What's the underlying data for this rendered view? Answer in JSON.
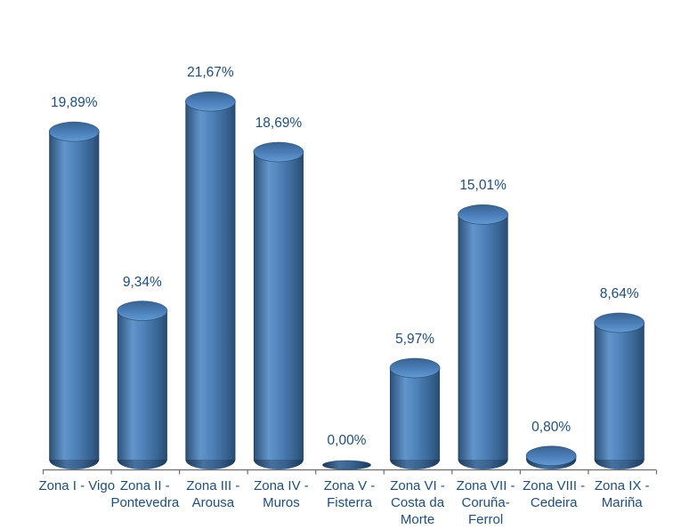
{
  "chart_data": {
    "type": "bar",
    "style": "3d-cylinder",
    "title": "",
    "xlabel": "",
    "ylabel": "",
    "ylim": [
      0,
      24
    ],
    "grid": false,
    "legend": false,
    "value_format": "percent-comma-decimal",
    "categories": [
      "Zona I - Vigo",
      "Zona II - Pontevedra",
      "Zona III - Arousa",
      "Zona IV - Muros",
      "Zona V - Fisterra",
      "Zona VI - Costa da Morte",
      "Zona VII - Coruña-Ferrol",
      "Zona VIII - Cedeira",
      "Zona IX - Mariña"
    ],
    "category_label_lines": [
      [
        "Zona I - Vigo"
      ],
      [
        "Zona II -",
        "Pontevedra"
      ],
      [
        "Zona III -",
        "Arousa"
      ],
      [
        "Zona IV -",
        "Muros"
      ],
      [
        "Zona V -",
        "Fisterra"
      ],
      [
        "Zona VI -",
        "Costa da",
        "Morte"
      ],
      [
        "Zona VII -",
        "Coruña-",
        "Ferrol"
      ],
      [
        "Zona VIII -",
        "Cedeira"
      ],
      [
        "Zona IX -",
        "Mariña"
      ]
    ],
    "values": [
      19.89,
      9.34,
      21.67,
      18.69,
      0,
      5.97,
      15.01,
      0.8,
      8.64
    ],
    "data_labels": [
      "19,89%",
      "9,34%",
      "21,67%",
      "18,69%",
      "0,00%",
      "5,97%",
      "15,01%",
      "0,80%",
      "8,64%"
    ],
    "colors": {
      "bar_body_gradient": [
        "#27466A",
        "#31577F",
        "#6295CB",
        "#4D80B6",
        "#35608D",
        "#294B70"
      ],
      "bar_cap_gradient": [
        "#396390",
        "#4A7DB8",
        "#639BD4"
      ],
      "bar_bottom_gradient": [
        "#1D3A58",
        "#46719F",
        "#375F8B",
        "#1D3A58"
      ],
      "bar_outline": "#1F4467",
      "label_text": "#1F4E79",
      "axis_line": "#6E6E6E",
      "background": "#FFFFFF"
    }
  }
}
